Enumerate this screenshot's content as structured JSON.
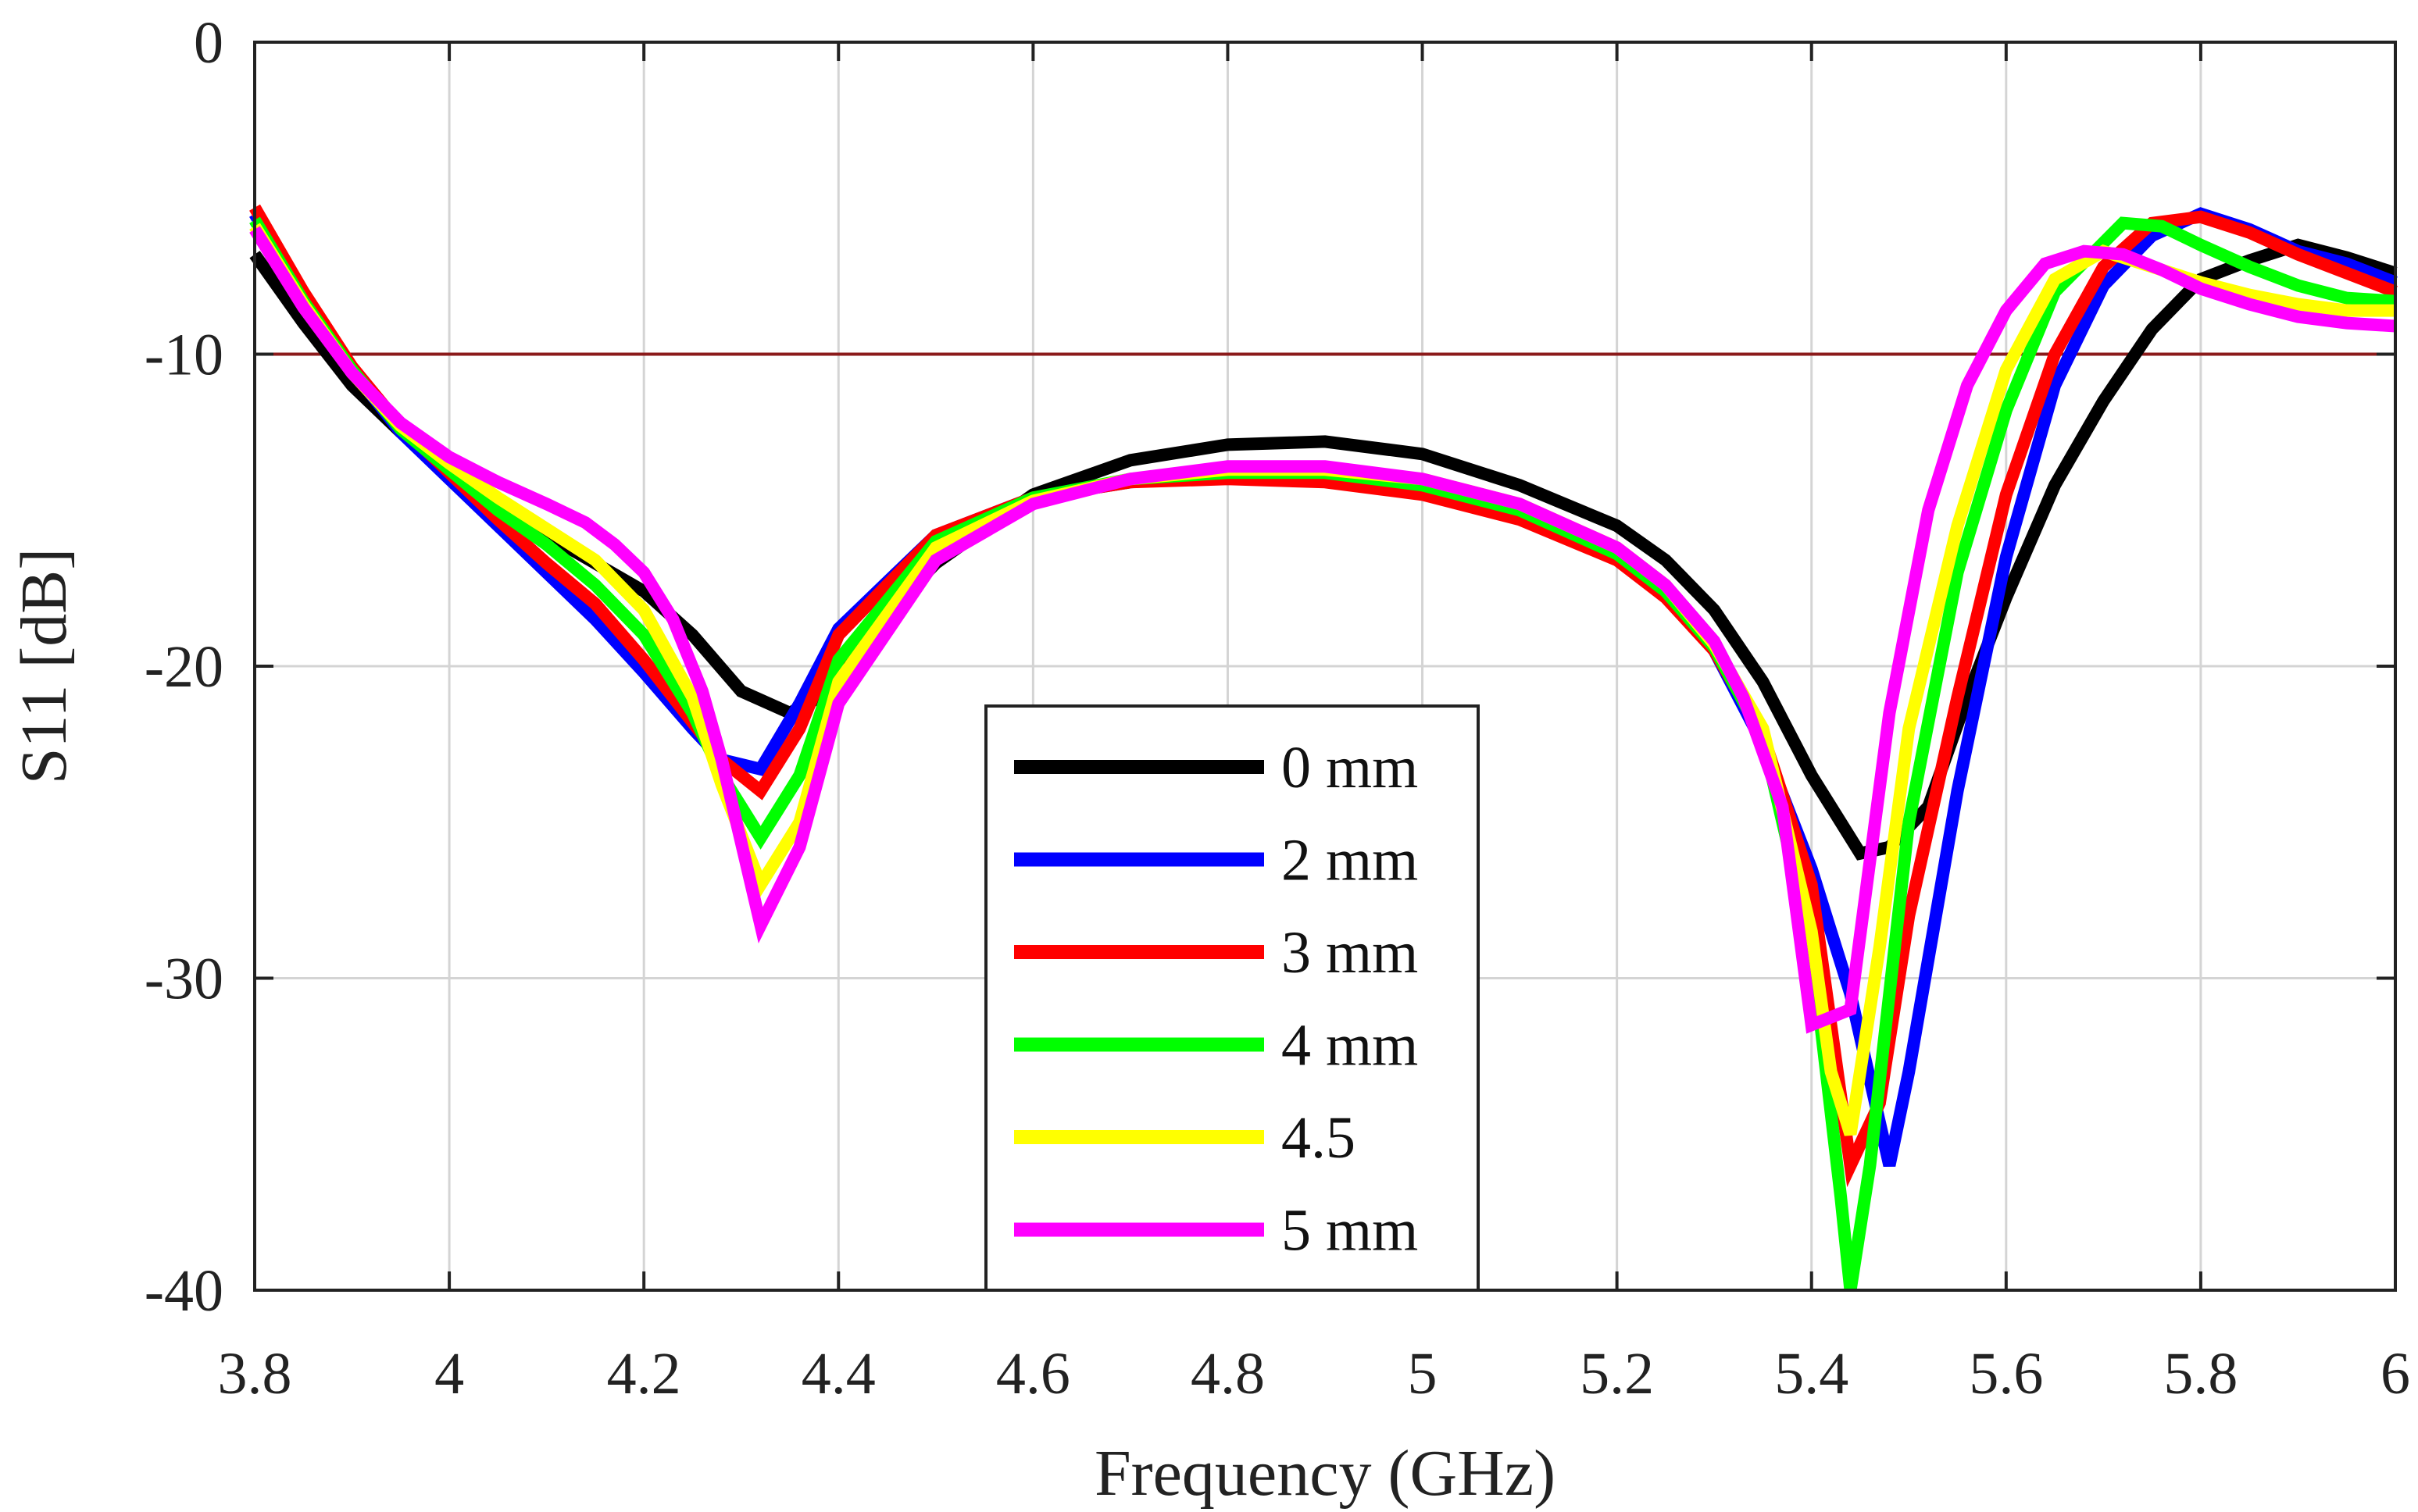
{
  "chart_data": {
    "type": "line",
    "title": "",
    "xlabel": "Frequency (GHz)",
    "ylabel": "S11 [dB]",
    "xlim": [
      3.8,
      6
    ],
    "ylim": [
      -40,
      0
    ],
    "xticks": [
      3.8,
      4,
      4.2,
      4.4,
      4.6,
      4.8,
      5,
      5.2,
      5.4,
      5.6,
      5.8,
      6
    ],
    "xtick_labels": [
      "3.8",
      "4",
      "4.2",
      "4.4",
      "4.6",
      "4.8",
      "5",
      "5.2",
      "5.4",
      "5.6",
      "5.8",
      "6"
    ],
    "yticks": [
      0,
      -10,
      -20,
      -30,
      -40
    ],
    "ytick_labels": [
      "0",
      "-10",
      "-20",
      "-30",
      "-40"
    ],
    "grid": true,
    "legend_position": "bottom-center",
    "reference_line": {
      "y": -10,
      "color": "#8b1a1a"
    },
    "series": [
      {
        "name": "0 mm",
        "color": "#000000",
        "x": [
          3.8,
          3.85,
          3.9,
          3.95,
          4.0,
          4.05,
          4.1,
          4.15,
          4.2,
          4.25,
          4.3,
          4.35,
          4.38,
          4.42,
          4.5,
          4.6,
          4.7,
          4.8,
          4.9,
          5.0,
          5.1,
          5.2,
          5.25,
          5.3,
          5.35,
          5.4,
          5.45,
          5.48,
          5.52,
          5.56,
          5.6,
          5.65,
          5.7,
          5.75,
          5.8,
          5.85,
          5.9,
          5.95,
          6.0
        ],
        "y": [
          -6.8,
          -9.0,
          -11.0,
          -12.5,
          -13.8,
          -14.8,
          -15.8,
          -16.7,
          -17.6,
          -19.0,
          -20.8,
          -21.5,
          -21.0,
          -19.3,
          -16.7,
          -14.5,
          -13.4,
          -12.9,
          -12.8,
          -13.2,
          -14.2,
          -15.5,
          -16.6,
          -18.2,
          -20.5,
          -23.5,
          -26.0,
          -25.8,
          -24.5,
          -21.0,
          -17.8,
          -14.2,
          -11.5,
          -9.2,
          -7.6,
          -7.0,
          -6.5,
          -6.9,
          -7.4
        ]
      },
      {
        "name": "2 mm",
        "color": "#0000ff",
        "x": [
          3.8,
          3.85,
          3.9,
          3.95,
          4.0,
          4.05,
          4.1,
          4.15,
          4.2,
          4.25,
          4.28,
          4.32,
          4.36,
          4.4,
          4.5,
          4.6,
          4.7,
          4.8,
          4.9,
          5.0,
          5.1,
          5.2,
          5.25,
          5.3,
          5.35,
          5.4,
          5.44,
          5.48,
          5.5,
          5.55,
          5.6,
          5.65,
          5.7,
          5.75,
          5.8,
          5.85,
          5.9,
          5.95,
          6.0
        ],
        "y": [
          -5.5,
          -8.2,
          -10.5,
          -12.5,
          -14.0,
          -15.5,
          -17.0,
          -18.5,
          -20.2,
          -22.0,
          -23.0,
          -23.3,
          -21.2,
          -18.8,
          -15.8,
          -14.6,
          -14.1,
          -13.9,
          -14.0,
          -14.4,
          -15.2,
          -16.5,
          -17.7,
          -19.5,
          -22.5,
          -26.5,
          -30.5,
          -36.0,
          -33.0,
          -24.0,
          -16.5,
          -11.0,
          -7.8,
          -6.2,
          -5.5,
          -6.0,
          -6.7,
          -7.1,
          -7.7
        ]
      },
      {
        "name": "3 mm",
        "color": "#ff0000",
        "x": [
          3.8,
          3.85,
          3.9,
          3.95,
          4.0,
          4.05,
          4.1,
          4.15,
          4.2,
          4.25,
          4.28,
          4.32,
          4.36,
          4.4,
          4.5,
          4.6,
          4.7,
          4.8,
          4.9,
          5.0,
          5.1,
          5.2,
          5.25,
          5.3,
          5.35,
          5.4,
          5.44,
          5.47,
          5.5,
          5.55,
          5.6,
          5.65,
          5.7,
          5.75,
          5.8,
          5.85,
          5.9,
          5.95,
          6.0
        ],
        "y": [
          -5.3,
          -8.0,
          -10.4,
          -12.3,
          -13.8,
          -15.3,
          -16.7,
          -18.0,
          -19.8,
          -21.8,
          -23.0,
          -24.0,
          -22.0,
          -19.0,
          -15.8,
          -14.6,
          -14.1,
          -14.0,
          -14.1,
          -14.5,
          -15.3,
          -16.6,
          -17.8,
          -19.5,
          -22.2,
          -27.0,
          -36.0,
          -34.0,
          -28.0,
          -21.0,
          -14.5,
          -10.0,
          -7.2,
          -5.8,
          -5.6,
          -6.1,
          -6.8,
          -7.4,
          -8.0
        ]
      },
      {
        "name": "4 mm",
        "color": "#00ff00",
        "x": [
          3.8,
          3.85,
          3.9,
          3.95,
          4.0,
          4.05,
          4.1,
          4.15,
          4.2,
          4.25,
          4.28,
          4.32,
          4.36,
          4.4,
          4.5,
          4.6,
          4.7,
          4.8,
          4.9,
          5.0,
          5.1,
          5.2,
          5.25,
          5.3,
          5.35,
          5.4,
          5.43,
          5.44,
          5.46,
          5.5,
          5.55,
          5.6,
          5.65,
          5.72,
          5.76,
          5.8,
          5.85,
          5.9,
          5.95,
          6.0
        ],
        "y": [
          -5.7,
          -8.3,
          -10.5,
          -12.4,
          -13.7,
          -15.0,
          -16.1,
          -17.4,
          -19.0,
          -21.5,
          -23.5,
          -25.5,
          -23.5,
          -19.8,
          -16.0,
          -14.6,
          -14.0,
          -13.8,
          -13.8,
          -14.2,
          -15.0,
          -16.4,
          -17.6,
          -19.4,
          -22.3,
          -29.0,
          -37.0,
          -40.0,
          -36.0,
          -25.0,
          -17.0,
          -11.8,
          -8.0,
          -5.8,
          -5.9,
          -6.5,
          -7.2,
          -7.8,
          -8.2,
          -8.3
        ]
      },
      {
        "name": "4.5",
        "color": "#ffff00",
        "x": [
          3.8,
          3.85,
          3.9,
          3.95,
          4.0,
          4.05,
          4.1,
          4.15,
          4.2,
          4.25,
          4.28,
          4.32,
          4.36,
          4.4,
          4.5,
          4.6,
          4.7,
          4.8,
          4.9,
          5.0,
          5.1,
          5.2,
          5.25,
          5.3,
          5.35,
          5.4,
          5.42,
          5.44,
          5.47,
          5.5,
          5.55,
          5.6,
          5.65,
          5.7,
          5.75,
          5.8,
          5.85,
          5.9,
          5.95,
          6.0
        ],
        "y": [
          -5.9,
          -8.4,
          -10.6,
          -12.3,
          -13.5,
          -14.6,
          -15.6,
          -16.6,
          -18.2,
          -21.0,
          -23.8,
          -27.0,
          -25.0,
          -20.5,
          -16.2,
          -14.7,
          -14.0,
          -13.7,
          -13.7,
          -14.0,
          -14.8,
          -16.2,
          -17.4,
          -19.3,
          -22.0,
          -28.5,
          -33.0,
          -35.0,
          -29.0,
          -22.0,
          -15.5,
          -10.5,
          -7.6,
          -6.7,
          -7.2,
          -7.7,
          -8.1,
          -8.4,
          -8.6,
          -8.6
        ]
      },
      {
        "name": "5 mm",
        "color": "#ff00ff",
        "x": [
          3.8,
          3.85,
          3.9,
          3.95,
          4.0,
          4.05,
          4.1,
          4.14,
          4.17,
          4.2,
          4.23,
          4.26,
          4.28,
          4.32,
          4.36,
          4.4,
          4.5,
          4.6,
          4.7,
          4.8,
          4.9,
          5.0,
          5.1,
          5.2,
          5.25,
          5.3,
          5.33,
          5.37,
          5.4,
          5.44,
          5.48,
          5.52,
          5.56,
          5.6,
          5.64,
          5.68,
          5.72,
          5.76,
          5.8,
          5.85,
          5.9,
          5.95,
          6.0
        ],
        "y": [
          -6.0,
          -8.5,
          -10.6,
          -12.2,
          -13.3,
          -14.1,
          -14.8,
          -15.4,
          -16.1,
          -17.0,
          -18.5,
          -20.8,
          -23.0,
          -28.3,
          -25.8,
          -21.2,
          -16.6,
          -14.8,
          -14.0,
          -13.6,
          -13.6,
          -14.0,
          -14.8,
          -16.2,
          -17.4,
          -19.2,
          -21.0,
          -24.5,
          -31.5,
          -31.0,
          -21.5,
          -15.0,
          -11.0,
          -8.6,
          -7.1,
          -6.7,
          -6.8,
          -7.3,
          -7.9,
          -8.4,
          -8.8,
          -9.0,
          -9.1
        ]
      }
    ]
  }
}
